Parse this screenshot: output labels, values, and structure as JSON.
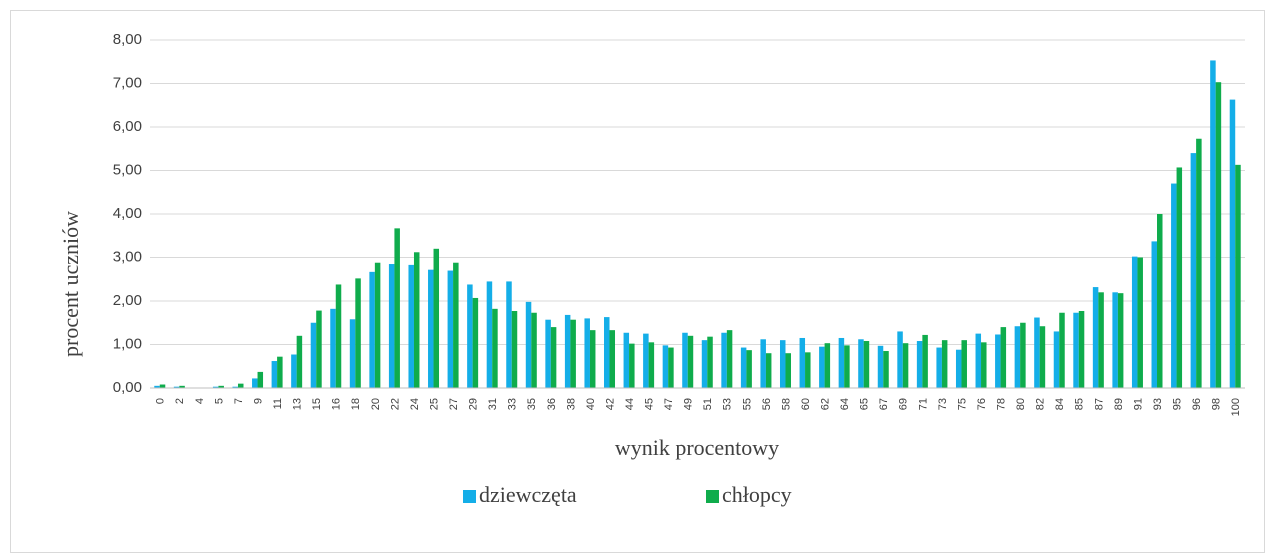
{
  "chart_data": {
    "type": "bar",
    "x_label": "wynik procentowy",
    "y_label": "procent uczniów",
    "categories": [
      "0",
      "2",
      "4",
      "5",
      "7",
      "9",
      "11",
      "13",
      "15",
      "16",
      "18",
      "20",
      "22",
      "24",
      "25",
      "27",
      "29",
      "31",
      "33",
      "35",
      "36",
      "38",
      "40",
      "42",
      "44",
      "45",
      "47",
      "49",
      "51",
      "53",
      "55",
      "56",
      "58",
      "60",
      "62",
      "64",
      "65",
      "67",
      "69",
      "71",
      "73",
      "75",
      "76",
      "78",
      "80",
      "82",
      "84",
      "85",
      "87",
      "89",
      "91",
      "93",
      "95",
      "96",
      "98",
      "100"
    ],
    "series": [
      {
        "name": "dziewczęta",
        "color": "#14aee8",
        "values": [
          0.05,
          0.03,
          0,
          0.03,
          0.03,
          0.22,
          0.62,
          0.77,
          1.5,
          1.82,
          1.58,
          2.67,
          2.85,
          2.83,
          2.72,
          2.7,
          2.38,
          2.45,
          2.45,
          1.98,
          1.57,
          1.68,
          1.6,
          1.63,
          1.27,
          1.25,
          0.98,
          1.27,
          1.1,
          1.27,
          0.93,
          1.12,
          1.1,
          1.15,
          0.95,
          1.15,
          1.12,
          0.97,
          1.3,
          1.08,
          0.93,
          0.88,
          1.25,
          1.23,
          1.42,
          1.62,
          1.3,
          1.73,
          2.32,
          2.2,
          3.02,
          3.37,
          4.7,
          5.4,
          7.53,
          6.63
        ]
      },
      {
        "name": "chłopcy",
        "color": "#0fac4c",
        "values": [
          0.08,
          0.05,
          0,
          0.05,
          0.1,
          0.37,
          0.72,
          1.2,
          1.78,
          2.38,
          2.52,
          2.88,
          3.67,
          3.12,
          3.2,
          2.88,
          2.07,
          1.82,
          1.77,
          1.73,
          1.4,
          1.57,
          1.33,
          1.33,
          1.02,
          1.05,
          0.93,
          1.2,
          1.18,
          1.33,
          0.87,
          0.8,
          0.8,
          0.82,
          1.03,
          0.98,
          1.08,
          0.85,
          1.03,
          1.22,
          1.1,
          1.1,
          1.05,
          1.4,
          1.5,
          1.42,
          1.73,
          1.77,
          2.2,
          2.18,
          3.0,
          4.0,
          5.07,
          5.73,
          7.03,
          5.13
        ]
      }
    ],
    "ylim": [
      0,
      8
    ],
    "yticks": [
      {
        "value": 0,
        "label": "0,00"
      },
      {
        "value": 1,
        "label": "1,00"
      },
      {
        "value": 2,
        "label": "2,00"
      },
      {
        "value": 3,
        "label": "3,00"
      },
      {
        "value": 4,
        "label": "4,00"
      },
      {
        "value": 5,
        "label": "5,00"
      },
      {
        "value": 6,
        "label": "6,00"
      },
      {
        "value": 7,
        "label": "7,00"
      },
      {
        "value": 8,
        "label": "8,00"
      }
    ],
    "grid": true,
    "legend": "bottom"
  }
}
